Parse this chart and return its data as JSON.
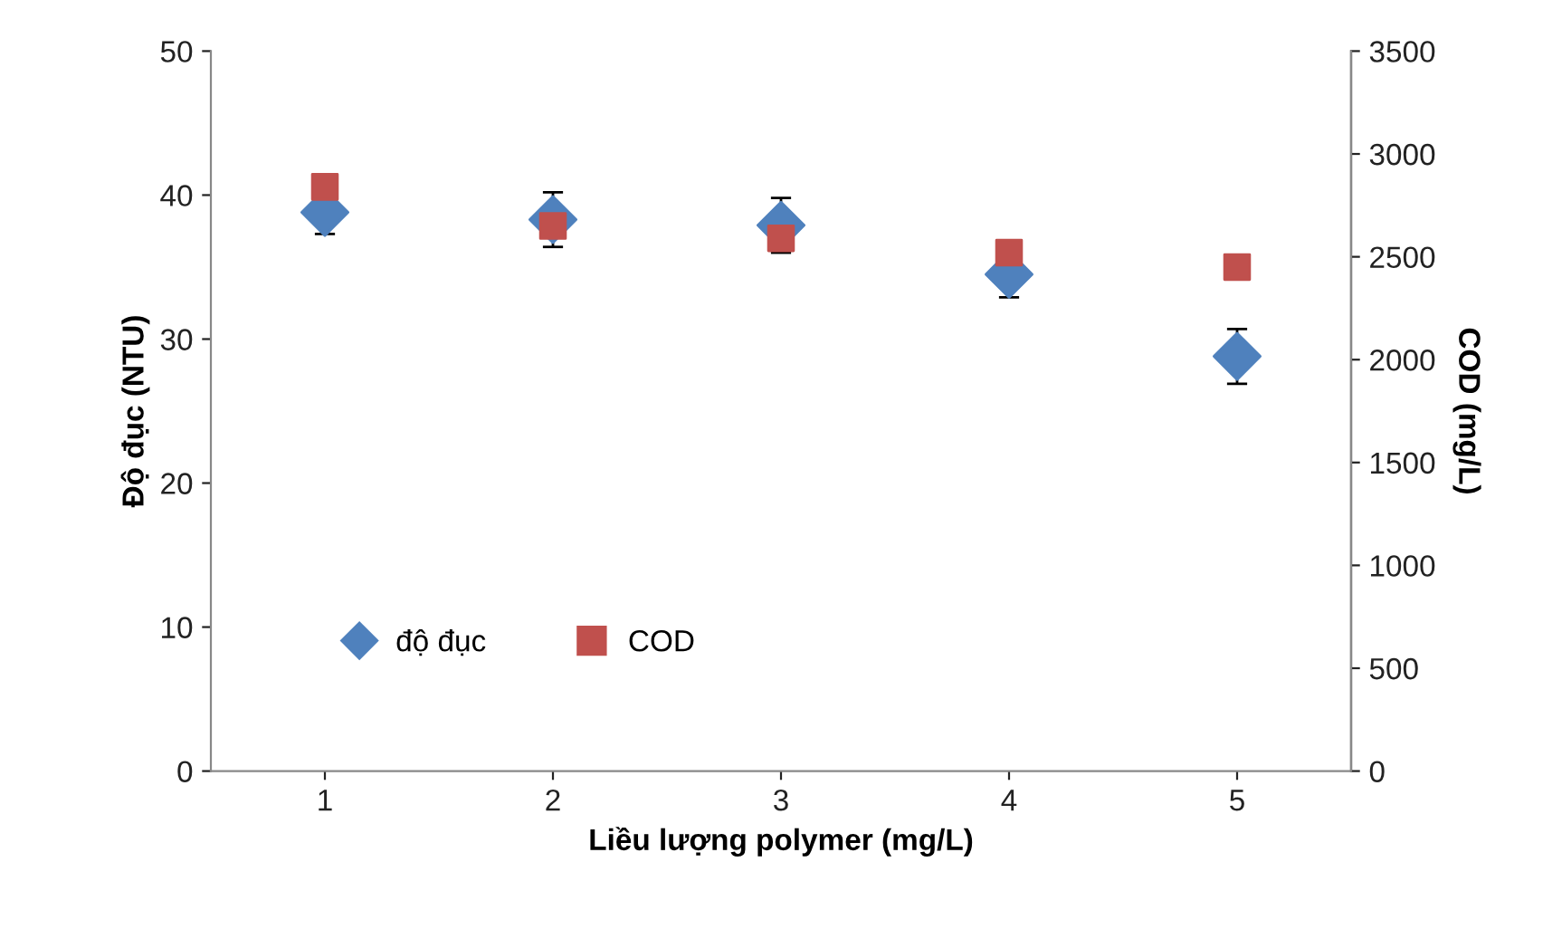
{
  "chart_data": {
    "type": "scatter",
    "xlabel": "Liều lượng polymer (mg/L)",
    "ylabel": "Độ đục (NTU)",
    "y2label": "COD (mg/L)",
    "categories": [
      "1",
      "2",
      "3",
      "4",
      "5"
    ],
    "series": [
      {
        "name": "độ đục",
        "color": "#4f81bd",
        "marker": "diamond",
        "values": [
          38.8,
          38.3,
          37.9,
          34.5,
          28.8
        ],
        "errors": [
          1.5,
          1.9,
          1.9,
          1.6,
          1.9
        ]
      },
      {
        "name": "COD",
        "color": "#c0504d",
        "marker": "square",
        "axis": "y2",
        "values": [
          2840,
          2650,
          2590,
          2520,
          2450
        ]
      }
    ],
    "ylim": [
      0,
      50
    ],
    "yticks": [
      0,
      10,
      20,
      30,
      40,
      50
    ],
    "y2lim": [
      0,
      3500
    ],
    "y2ticks": [
      0,
      500,
      1000,
      1500,
      2000,
      2500,
      3000,
      3500
    ],
    "grid": false,
    "legend": "lower left"
  }
}
